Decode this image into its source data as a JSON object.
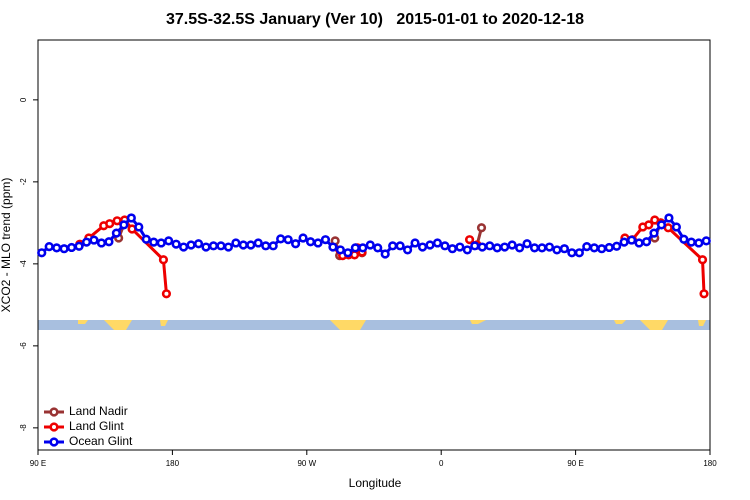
{
  "chart_data": {
    "type": "line",
    "title": "37.5S-32.5S January (Ver 10)   2015-01-01 to 2020-12-18",
    "xlabel": "Longitude",
    "ylabel": "XCO2 - MLO trend (ppm)",
    "xlim": [
      90,
      540
    ],
    "xticks": [
      {
        "value": 90,
        "label": "90 E"
      },
      180,
      {
        "value": 270,
        "label": "90 W"
      },
      {
        "value": 360,
        "label": "0"
      },
      {
        "value": 450,
        "label": "90 E"
      },
      {
        "value": 540,
        "label": "180"
      }
    ],
    "ylim": [
      -8.54,
      1.46
    ],
    "yticks": [
      0,
      -2,
      -4,
      -6,
      -8
    ],
    "legend": "bottom-left",
    "series": [
      {
        "name": "Land Nadir",
        "color": "#993333",
        "x": [
          144,
          148,
          null,
          289,
          292,
          null,
          303,
          307,
          null,
          384,
          387,
          null,
          503,
          507
        ],
        "values": [
          -3.37,
          -3.0,
          null,
          -3.44,
          -3.8,
          null,
          -3.61,
          -3.73,
          null,
          -3.54,
          -3.12,
          null,
          -3.37,
          -3.0
        ]
      },
      {
        "name": "Land Glint",
        "color": "#ee0000",
        "x": [
          118,
          124,
          134,
          138,
          143,
          148,
          153,
          174,
          176,
          null,
          292,
          294,
          298,
          302,
          304,
          307,
          null,
          379,
          384,
          null,
          483,
          488,
          495,
          499,
          503,
          507,
          512,
          535,
          536
        ],
        "values": [
          -3.52,
          -3.37,
          -3.07,
          -3.02,
          -2.95,
          -2.93,
          -3.15,
          -3.9,
          -4.73,
          null,
          -3.66,
          -3.8,
          -3.78,
          -3.78,
          -3.61,
          -3.71,
          null,
          -3.41,
          -3.54,
          null,
          -3.37,
          -3.41,
          -3.1,
          -3.05,
          -2.93,
          -3.0,
          -3.12,
          -3.9,
          -4.73
        ]
      },
      {
        "name": "Ocean Glint",
        "color": "#0000ee",
        "x": [
          92.5,
          97.5,
          102.5,
          107.5,
          112.5,
          117.5,
          122.5,
          127.5,
          132.5,
          137.5,
          142.5,
          147.5,
          152.5,
          157.5,
          162.5,
          167.5,
          172.5,
          177.5,
          182.5,
          187.5,
          192.5,
          197.5,
          202.5,
          207.5,
          212.5,
          217.5,
          222.5,
          227.5,
          232.5,
          237.5,
          242.5,
          247.5,
          252.5,
          257.5,
          262.5,
          267.5,
          272.5,
          277.5,
          282.5,
          287.5,
          292.5,
          297.5,
          302.5,
          307.5,
          312.5,
          317.5,
          322.5,
          327.5,
          332.5,
          337.5,
          342.5,
          347.5,
          352.5,
          357.5,
          362.5,
          367.5,
          372.5,
          377.5,
          382.5,
          387.5,
          392.5,
          397.5,
          402.5,
          407.5,
          412.5,
          417.5,
          422.5,
          427.5,
          432.5,
          437.5,
          442.5,
          447.5,
          452.5,
          457.5,
          462.5,
          467.5,
          472.5,
          477.5,
          482.5,
          487.5,
          492.5,
          497.5,
          502.5,
          507.5,
          512.5,
          517.5,
          522.5,
          527.5,
          532.5,
          537.5
        ],
        "values": [
          -3.73,
          -3.58,
          -3.61,
          -3.63,
          -3.6,
          -3.57,
          -3.47,
          -3.42,
          -3.49,
          -3.46,
          -3.25,
          -3.05,
          -2.88,
          -3.1,
          -3.4,
          -3.47,
          -3.49,
          -3.44,
          -3.52,
          -3.59,
          -3.54,
          -3.51,
          -3.59,
          -3.56,
          -3.56,
          -3.59,
          -3.49,
          -3.54,
          -3.54,
          -3.49,
          -3.56,
          -3.56,
          -3.39,
          -3.41,
          -3.51,
          -3.37,
          -3.46,
          -3.49,
          -3.41,
          -3.59,
          -3.66,
          -3.73,
          -3.61,
          -3.61,
          -3.54,
          -3.61,
          -3.76,
          -3.56,
          -3.56,
          -3.66,
          -3.49,
          -3.59,
          -3.54,
          -3.49,
          -3.56,
          -3.63,
          -3.59,
          -3.66,
          -3.56,
          -3.59,
          -3.56,
          -3.61,
          -3.59,
          -3.54,
          -3.61,
          -3.51,
          -3.61,
          -3.61,
          -3.59,
          -3.66,
          -3.63,
          -3.73,
          -3.73,
          -3.58,
          -3.61,
          -3.63,
          -3.6,
          -3.57,
          -3.47,
          -3.42,
          -3.49,
          -3.46,
          -3.25,
          -3.05,
          -2.88,
          -3.1,
          -3.4,
          -3.47,
          -3.49,
          -3.44
        ]
      }
    ]
  }
}
